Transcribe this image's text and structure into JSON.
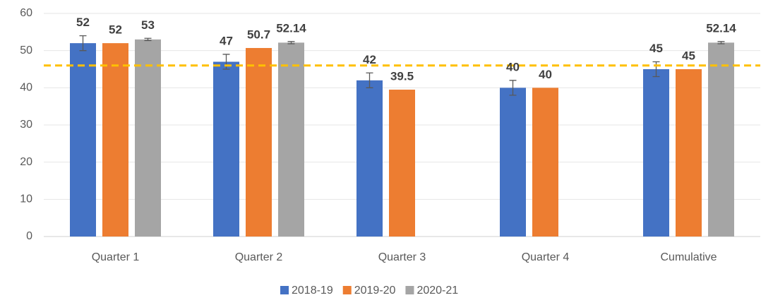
{
  "chart_data": {
    "type": "bar",
    "categories": [
      "Quarter 1",
      "Quarter 2",
      "Quarter 3",
      "Quarter 4",
      "Cumulative"
    ],
    "series": [
      {
        "name": "2018-19",
        "color": "#4472c4",
        "values": [
          52,
          47,
          42,
          40,
          45
        ],
        "errors": [
          2,
          2,
          2,
          2,
          2
        ]
      },
      {
        "name": "2019-20",
        "color": "#ed7d31",
        "values": [
          52,
          50.7,
          39.5,
          40,
          45
        ],
        "errors": [
          null,
          null,
          null,
          null,
          null
        ]
      },
      {
        "name": "2020-21",
        "color": "#a5a5a5",
        "values": [
          53,
          52.14,
          null,
          null,
          52.14
        ],
        "errors": [
          0.3,
          0.3,
          null,
          null,
          0.3
        ]
      }
    ],
    "ylim": [
      0,
      60
    ],
    "yticks": [
      0,
      10,
      20,
      30,
      40,
      50,
      60
    ],
    "grid": true,
    "reference_line": {
      "value": 46,
      "color": "#ffc000"
    },
    "legend": "bottom"
  }
}
